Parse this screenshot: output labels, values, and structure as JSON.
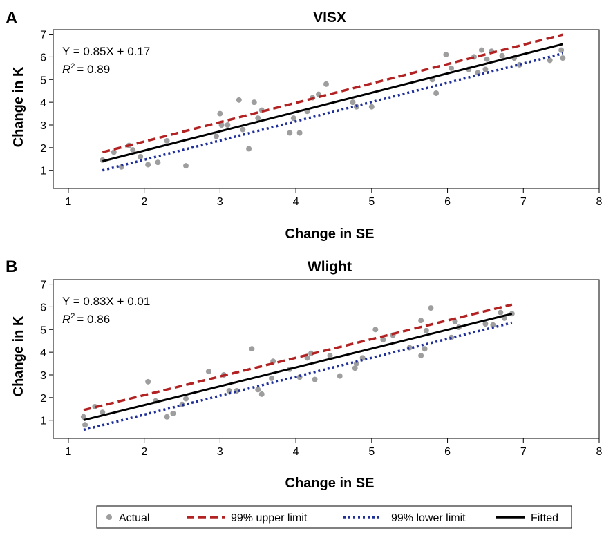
{
  "panel_letters": [
    "A",
    "B"
  ],
  "legend": {
    "items": [
      {
        "label": "Actual",
        "kind": "point",
        "color": "#9e9e9e"
      },
      {
        "label": "99% upper limit",
        "kind": "dash",
        "color": "#b22222"
      },
      {
        "label": "99% lower limit",
        "kind": "dot",
        "color": "#1f2f9a"
      },
      {
        "label": "Fitted",
        "kind": "solid",
        "color": "#000000"
      }
    ]
  },
  "chart_data": [
    {
      "type": "scatter",
      "title": "VISX",
      "xlabel": "Change in SE",
      "ylabel": "Change in K",
      "xlim": [
        0.8,
        8.0
      ],
      "ylim": [
        0.2,
        7.2
      ],
      "xticks": [
        1,
        2,
        3,
        4,
        5,
        6,
        7,
        8
      ],
      "yticks": [
        1,
        2,
        3,
        4,
        5,
        6,
        7
      ],
      "equation": "Y = 0.85X + 0.17",
      "r2_value": "= 0.89",
      "fitted": {
        "slope": 0.85,
        "intercept": 0.17,
        "x_range": [
          1.45,
          7.52
        ]
      },
      "upper_limit": {
        "points": [
          [
            1.45,
            1.8
          ],
          [
            7.52,
            6.98
          ]
        ]
      },
      "lower_limit": {
        "points": [
          [
            1.45,
            1.0
          ],
          [
            7.52,
            6.15
          ]
        ]
      },
      "points": [
        [
          1.45,
          1.45
        ],
        [
          1.6,
          1.8
        ],
        [
          1.7,
          1.15
        ],
        [
          1.8,
          2.1
        ],
        [
          1.85,
          1.9
        ],
        [
          1.95,
          1.6
        ],
        [
          2.05,
          1.25
        ],
        [
          2.18,
          1.35
        ],
        [
          2.3,
          2.3
        ],
        [
          2.55,
          1.2
        ],
        [
          2.95,
          2.5
        ],
        [
          3.0,
          3.5
        ],
        [
          3.02,
          3.0
        ],
        [
          3.1,
          3.0
        ],
        [
          3.25,
          4.1
        ],
        [
          3.3,
          2.8
        ],
        [
          3.38,
          1.95
        ],
        [
          3.45,
          4.0
        ],
        [
          3.5,
          3.3
        ],
        [
          3.55,
          3.65
        ],
        [
          3.92,
          2.65
        ],
        [
          3.97,
          3.3
        ],
        [
          4.05,
          2.65
        ],
        [
          4.15,
          3.6
        ],
        [
          4.22,
          4.2
        ],
        [
          4.3,
          4.35
        ],
        [
          4.4,
          4.8
        ],
        [
          4.75,
          4.0
        ],
        [
          4.8,
          3.8
        ],
        [
          5.0,
          3.8
        ],
        [
          5.8,
          5.0
        ],
        [
          5.85,
          4.4
        ],
        [
          5.98,
          6.1
        ],
        [
          6.05,
          5.5
        ],
        [
          6.28,
          5.45
        ],
        [
          6.35,
          6.0
        ],
        [
          6.4,
          5.3
        ],
        [
          6.45,
          6.3
        ],
        [
          6.5,
          5.45
        ],
        [
          6.52,
          5.9
        ],
        [
          6.58,
          6.25
        ],
        [
          6.72,
          6.05
        ],
        [
          6.88,
          5.95
        ],
        [
          6.95,
          5.65
        ],
        [
          7.35,
          5.85
        ],
        [
          7.5,
          6.3
        ],
        [
          7.52,
          5.95
        ]
      ]
    },
    {
      "type": "scatter",
      "title": "Wlight",
      "xlabel": "Change in SE",
      "ylabel": "Change in K",
      "xlim": [
        0.8,
        8.0
      ],
      "ylim": [
        0.2,
        7.2
      ],
      "xticks": [
        1,
        2,
        3,
        4,
        5,
        6,
        7,
        8
      ],
      "yticks": [
        1,
        2,
        3,
        4,
        5,
        6,
        7
      ],
      "equation": "Y = 0.83X + 0.01",
      "r2_value": "= 0.86",
      "fitted": {
        "slope": 0.83,
        "intercept": 0.01,
        "x_range": [
          1.2,
          6.85
        ]
      },
      "upper_limit": {
        "points": [
          [
            1.2,
            1.45
          ],
          [
            6.85,
            6.1
          ]
        ]
      },
      "lower_limit": {
        "points": [
          [
            1.2,
            0.58
          ],
          [
            6.85,
            5.3
          ]
        ]
      },
      "points": [
        [
          1.2,
          1.15
        ],
        [
          1.22,
          0.8
        ],
        [
          1.35,
          1.6
        ],
        [
          1.45,
          1.35
        ],
        [
          2.05,
          2.7
        ],
        [
          2.15,
          1.85
        ],
        [
          2.3,
          1.15
        ],
        [
          2.38,
          1.3
        ],
        [
          2.5,
          1.7
        ],
        [
          2.55,
          1.95
        ],
        [
          2.85,
          3.15
        ],
        [
          3.05,
          3.0
        ],
        [
          3.12,
          2.3
        ],
        [
          3.22,
          2.3
        ],
        [
          3.42,
          4.15
        ],
        [
          3.5,
          2.35
        ],
        [
          3.55,
          2.15
        ],
        [
          3.68,
          2.85
        ],
        [
          3.7,
          3.6
        ],
        [
          3.92,
          3.25
        ],
        [
          4.05,
          2.9
        ],
        [
          4.15,
          3.75
        ],
        [
          4.2,
          3.95
        ],
        [
          4.25,
          2.8
        ],
        [
          4.45,
          3.85
        ],
        [
          4.58,
          2.95
        ],
        [
          4.78,
          3.3
        ],
        [
          4.8,
          3.5
        ],
        [
          4.88,
          3.75
        ],
        [
          5.05,
          5.0
        ],
        [
          5.15,
          4.55
        ],
        [
          5.28,
          4.75
        ],
        [
          5.5,
          4.2
        ],
        [
          5.65,
          3.85
        ],
        [
          5.65,
          5.4
        ],
        [
          5.7,
          4.15
        ],
        [
          5.72,
          4.95
        ],
        [
          5.78,
          5.95
        ],
        [
          6.05,
          4.65
        ],
        [
          6.1,
          5.35
        ],
        [
          6.15,
          5.1
        ],
        [
          6.5,
          5.25
        ],
        [
          6.6,
          5.2
        ],
        [
          6.7,
          5.75
        ],
        [
          6.75,
          5.5
        ],
        [
          6.85,
          5.7
        ]
      ]
    }
  ]
}
